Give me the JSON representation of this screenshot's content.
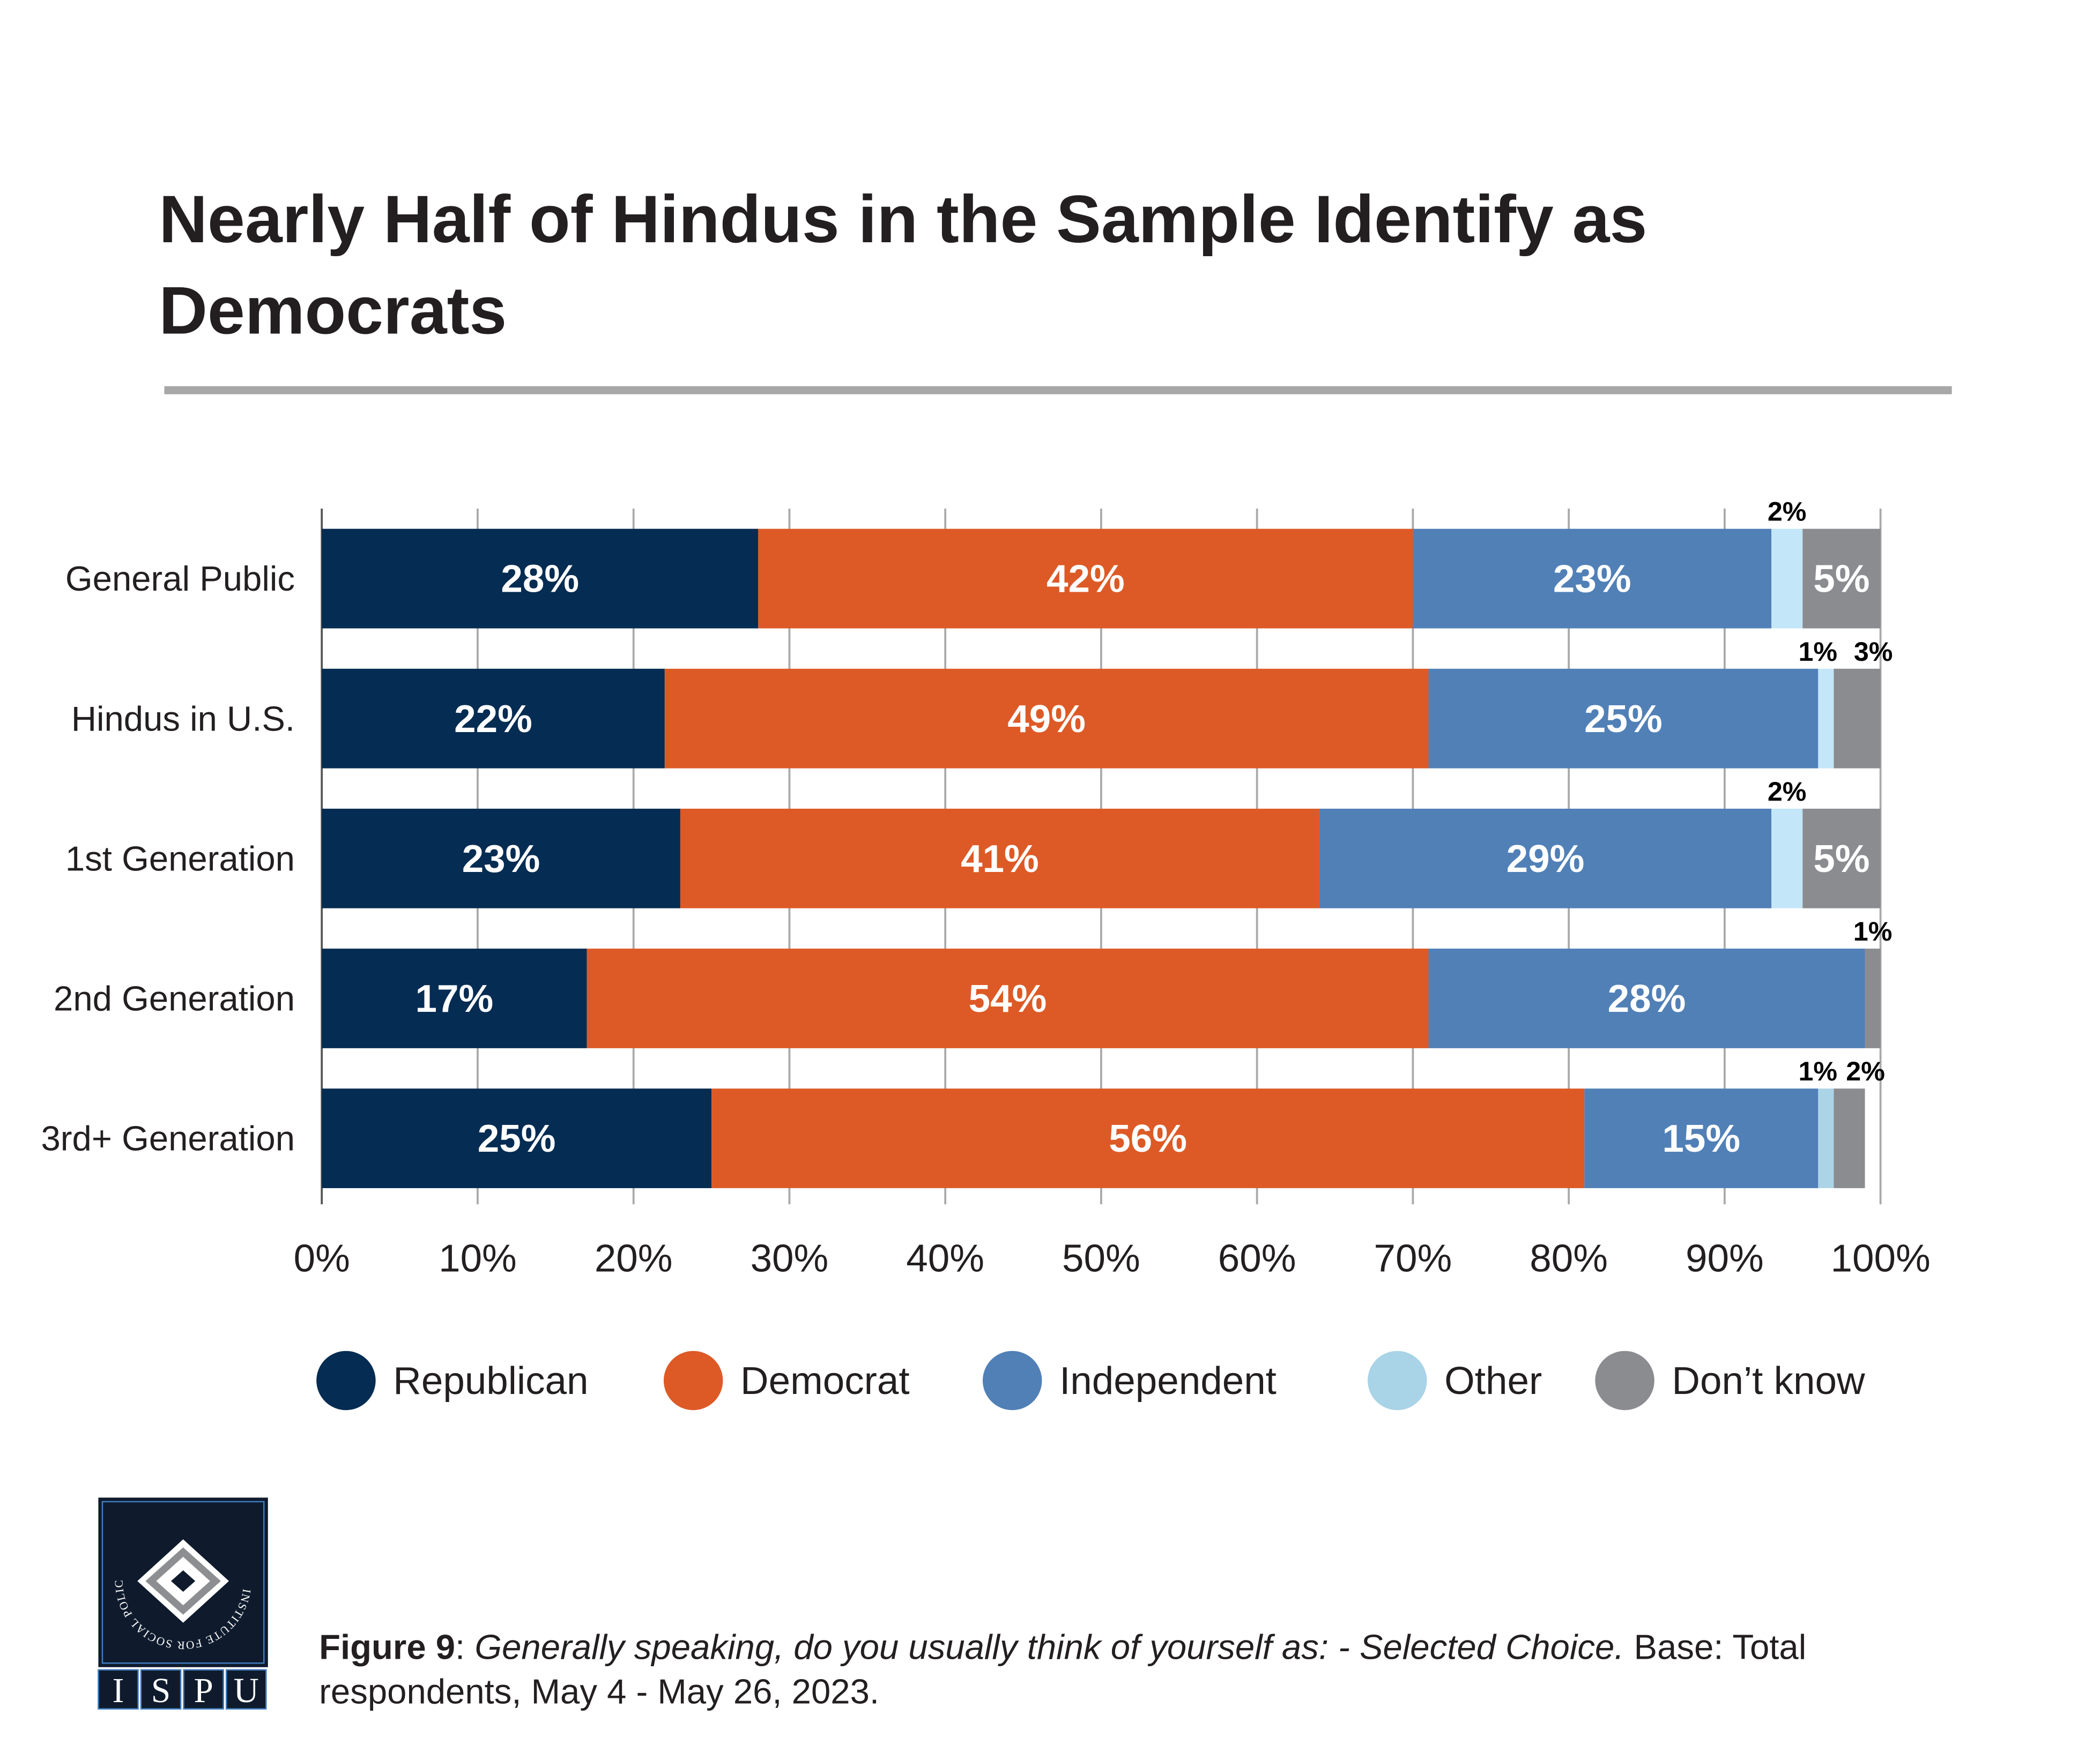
{
  "chart_data": {
    "type": "bar",
    "orientation": "horizontal",
    "stacked": true,
    "title": "Nearly Half of Hindus in the Sample Identify as Democrats",
    "title_lines": [
      "Nearly Half of Hindus in the Sample Identify as",
      "Democrats"
    ],
    "categories": [
      "General Public",
      "Hindus in U.S.",
      "1st Generation",
      "2nd Generation",
      "3rd+ Generation"
    ],
    "series": [
      {
        "name": "Republican",
        "color": "#052c52",
        "values": [
          28,
          22,
          23,
          17,
          25
        ]
      },
      {
        "name": "Democrat",
        "color": "#dd5a26",
        "values": [
          42,
          49,
          41,
          54,
          56
        ]
      },
      {
        "name": "Independent",
        "color": "#5180b7",
        "values": [
          23,
          25,
          29,
          28,
          15
        ]
      },
      {
        "name": "Other",
        "color": "#c3e6f8",
        "values": [
          2,
          1,
          2,
          0,
          1
        ]
      },
      {
        "name": "Don’t know",
        "color": "#8b8c90",
        "values": [
          5,
          3,
          5,
          1,
          2
        ]
      }
    ],
    "legend_colors": [
      "#052c52",
      "#dd5a26",
      "#5180b7",
      "#a9d3e6",
      "#8b8c90"
    ],
    "xlim": [
      0,
      100
    ],
    "x_ticks": [
      "0%",
      "10%",
      "20%",
      "30%",
      "40%",
      "50%",
      "60%",
      "70%",
      "80%",
      "90%",
      "100%"
    ],
    "grid": true,
    "legend_position": "bottom",
    "value_suffix": "%"
  },
  "caption": {
    "figure_label": "Figure 9",
    "question": "Generally speaking, do you usually think of yourself as: - Selected Choice.",
    "base_line1": " Base: Total",
    "base_line2": "respondents, May 4 - May 26, 2023."
  },
  "logo": {
    "ring_text": "INSTITUTE FOR SOCIAL POLICY AND UNDERSTANDING",
    "letters": [
      "I",
      "S",
      "P",
      "U"
    ],
    "color": "#0f1b2d"
  }
}
